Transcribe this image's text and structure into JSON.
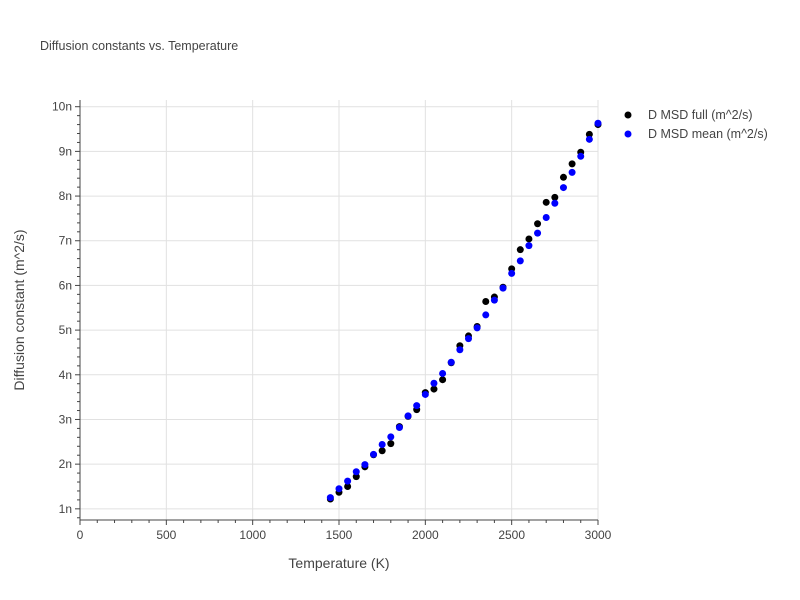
{
  "chart_data": {
    "type": "scatter",
    "title": "Diffusion constants vs. Temperature",
    "xlabel": "Temperature (K)",
    "ylabel": "Diffusion constant (m^2/s)",
    "xlim": [
      0,
      3000
    ],
    "ylim": [
      0.75,
      10.15
    ],
    "x_ticks": [
      0,
      500,
      1000,
      1500,
      2000,
      2500,
      3000
    ],
    "x_tick_labels": [
      "0",
      "500",
      "1000",
      "1500",
      "2000",
      "2500",
      "3000"
    ],
    "y_ticks": [
      1,
      2,
      3,
      4,
      5,
      6,
      7,
      8,
      9,
      10
    ],
    "y_tick_labels": [
      "1n",
      "2n",
      "3n",
      "4n",
      "5n",
      "6n",
      "7n",
      "8n",
      "9n",
      "10n"
    ],
    "y_unit_scale": "1e-9",
    "grid": true,
    "legend_position": "top-right",
    "x": [
      1450,
      1500,
      1550,
      1600,
      1650,
      1700,
      1750,
      1800,
      1850,
      1900,
      1950,
      2000,
      2050,
      2100,
      2150,
      2200,
      2250,
      2300,
      2350,
      2400,
      2450,
      2500,
      2550,
      2600,
      2650,
      2700,
      2750,
      2800,
      2850,
      2900,
      2950,
      3000
    ],
    "series": [
      {
        "name": "D MSD full (m^2/s)",
        "color": "#000000",
        "values": [
          1.22,
          1.37,
          1.5,
          1.72,
          1.94,
          2.21,
          2.3,
          2.46,
          2.84,
          3.07,
          3.22,
          3.6,
          3.68,
          3.89,
          4.27,
          4.65,
          4.87,
          5.08,
          5.64,
          5.74,
          5.96,
          6.37,
          6.8,
          7.04,
          7.38,
          7.86,
          7.97,
          8.42,
          8.72,
          8.98,
          9.38,
          9.6
        ]
      },
      {
        "name": "D MSD mean (m^2/s)",
        "color": "#0000ff",
        "values": [
          1.25,
          1.45,
          1.62,
          1.83,
          1.99,
          2.22,
          2.44,
          2.61,
          2.82,
          3.08,
          3.31,
          3.56,
          3.81,
          4.03,
          4.28,
          4.56,
          4.81,
          5.05,
          5.34,
          5.67,
          5.94,
          6.27,
          6.55,
          6.89,
          7.17,
          7.52,
          7.84,
          8.19,
          8.53,
          8.89,
          9.27,
          9.63
        ]
      }
    ]
  }
}
